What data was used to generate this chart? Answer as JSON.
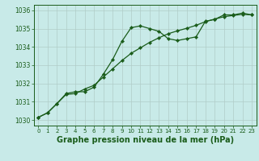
{
  "xlabel": "Graphe pression niveau de la mer (hPa)",
  "ylim": [
    1029.7,
    1036.3
  ],
  "xlim": [
    -0.5,
    23.5
  ],
  "yticks": [
    1030,
    1031,
    1032,
    1033,
    1034,
    1035,
    1036
  ],
  "xticks": [
    0,
    1,
    2,
    3,
    4,
    5,
    6,
    7,
    8,
    9,
    10,
    11,
    12,
    13,
    14,
    15,
    16,
    17,
    18,
    19,
    20,
    21,
    22,
    23
  ],
  "bg_color": "#c8eae8",
  "grid_color": "#b0ccc8",
  "line_color": "#1a5c1a",
  "series1": [
    1030.15,
    1030.4,
    1030.9,
    1031.45,
    1031.55,
    1031.55,
    1031.8,
    1032.5,
    1033.3,
    1034.3,
    1035.05,
    1035.15,
    1035.0,
    1034.85,
    1034.45,
    1034.35,
    1034.45,
    1034.55,
    1035.4,
    1035.5,
    1035.75,
    1035.75,
    1035.85,
    1035.75
  ],
  "series2": [
    1030.15,
    1030.4,
    1030.9,
    1031.4,
    1031.45,
    1031.7,
    1031.9,
    1032.35,
    1032.8,
    1033.25,
    1033.65,
    1033.95,
    1034.25,
    1034.5,
    1034.72,
    1034.88,
    1035.02,
    1035.18,
    1035.38,
    1035.52,
    1035.65,
    1035.72,
    1035.78,
    1035.75
  ],
  "marker": "D",
  "marker_size": 2.2,
  "linewidth": 0.9,
  "font_color": "#1a5c1a",
  "font_size_tick_x": 5.0,
  "font_size_tick_y": 5.5,
  "font_size_xlabel": 7.0,
  "font_weight_xlabel": "bold"
}
